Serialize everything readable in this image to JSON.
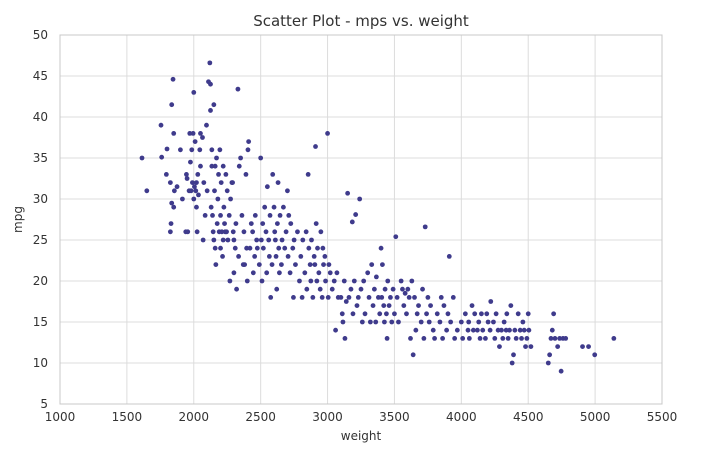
{
  "chart_data": {
    "type": "scatter",
    "title": "Scatter Plot - mps vs. weight",
    "xlabel": "weight",
    "ylabel": "mpg",
    "xlim": [
      1000,
      5500
    ],
    "ylim": [
      5,
      50
    ],
    "x_ticks": [
      1000,
      1500,
      2000,
      2500,
      3000,
      3500,
      4000,
      4500,
      5000,
      5500
    ],
    "y_ticks": [
      5,
      10,
      15,
      20,
      25,
      30,
      35,
      40,
      45,
      50
    ],
    "grid": true,
    "legend": "none",
    "colors": {
      "marker": "#3f3b8c",
      "grid": "#dcdcdc",
      "frame": "#c8c8c8",
      "text": "#333333"
    },
    "points": [
      [
        1613,
        35
      ],
      [
        1649,
        31
      ],
      [
        1755,
        39
      ],
      [
        1760,
        35.1
      ],
      [
        1795,
        33
      ],
      [
        1800,
        36.1
      ],
      [
        1835,
        41.5
      ],
      [
        1845,
        44.6
      ],
      [
        1850,
        38
      ],
      [
        1825,
        32
      ],
      [
        1835,
        29.5
      ],
      [
        1825,
        26
      ],
      [
        1830,
        27
      ],
      [
        1850,
        29
      ],
      [
        1855,
        31
      ],
      [
        1875,
        31.5
      ],
      [
        1900,
        36
      ],
      [
        1915,
        30
      ],
      [
        1940,
        26
      ],
      [
        1945,
        33
      ],
      [
        1950,
        32.5
      ],
      [
        1955,
        26
      ],
      [
        1965,
        31
      ],
      [
        1970,
        38
      ],
      [
        1975,
        34.5
      ],
      [
        1980,
        31
      ],
      [
        1985,
        36
      ],
      [
        1990,
        32
      ],
      [
        1995,
        38
      ],
      [
        2000,
        43
      ],
      [
        2000,
        30
      ],
      [
        2005,
        31.5
      ],
      [
        2010,
        37
      ],
      [
        2015,
        31
      ],
      [
        2020,
        29
      ],
      [
        2020,
        32
      ],
      [
        2025,
        26
      ],
      [
        2030,
        33
      ],
      [
        2035,
        30.5
      ],
      [
        2045,
        36
      ],
      [
        2050,
        38
      ],
      [
        2050,
        34
      ],
      [
        2065,
        37.5
      ],
      [
        2070,
        25
      ],
      [
        2075,
        32
      ],
      [
        2085,
        28
      ],
      [
        2095,
        39
      ],
      [
        2100,
        31
      ],
      [
        2110,
        44.3
      ],
      [
        2120,
        46.6
      ],
      [
        2125,
        40.8
      ],
      [
        2125,
        44
      ],
      [
        2130,
        29
      ],
      [
        2135,
        36
      ],
      [
        2135,
        34
      ],
      [
        2140,
        28
      ],
      [
        2145,
        26
      ],
      [
        2150,
        41.5
      ],
      [
        2150,
        25
      ],
      [
        2155,
        31
      ],
      [
        2160,
        34
      ],
      [
        2160,
        24
      ],
      [
        2165,
        22
      ],
      [
        2170,
        35
      ],
      [
        2175,
        27
      ],
      [
        2180,
        30
      ],
      [
        2185,
        33
      ],
      [
        2190,
        26
      ],
      [
        2195,
        36
      ],
      [
        2200,
        28
      ],
      [
        2200,
        24
      ],
      [
        2205,
        32
      ],
      [
        2210,
        26
      ],
      [
        2215,
        23
      ],
      [
        2220,
        25
      ],
      [
        2220,
        34
      ],
      [
        2225,
        29
      ],
      [
        2230,
        27
      ],
      [
        2235,
        26
      ],
      [
        2240,
        33
      ],
      [
        2245,
        26
      ],
      [
        2250,
        31
      ],
      [
        2255,
        25
      ],
      [
        2265,
        28
      ],
      [
        2270,
        20
      ],
      [
        2275,
        30
      ],
      [
        2285,
        32
      ],
      [
        2290,
        32
      ],
      [
        2295,
        26
      ],
      [
        2300,
        25
      ],
      [
        2300,
        21
      ],
      [
        2310,
        24
      ],
      [
        2315,
        27
      ],
      [
        2320,
        19
      ],
      [
        2330,
        43.4
      ],
      [
        2335,
        23
      ],
      [
        2340,
        34
      ],
      [
        2350,
        35
      ],
      [
        2360,
        28
      ],
      [
        2370,
        22
      ],
      [
        2375,
        26
      ],
      [
        2380,
        22
      ],
      [
        2390,
        33
      ],
      [
        2395,
        24
      ],
      [
        2400,
        20
      ],
      [
        2405,
        36
      ],
      [
        2410,
        37
      ],
      [
        2420,
        24
      ],
      [
        2430,
        27
      ],
      [
        2440,
        26
      ],
      [
        2445,
        21
      ],
      [
        2455,
        23
      ],
      [
        2460,
        28
      ],
      [
        2470,
        25
      ],
      [
        2475,
        24
      ],
      [
        2490,
        22
      ],
      [
        2500,
        35
      ],
      [
        2505,
        25
      ],
      [
        2510,
        20
      ],
      [
        2515,
        27
      ],
      [
        2520,
        24
      ],
      [
        2530,
        29
      ],
      [
        2540,
        26
      ],
      [
        2545,
        21
      ],
      [
        2550,
        31.5
      ],
      [
        2560,
        25
      ],
      [
        2565,
        23
      ],
      [
        2570,
        28
      ],
      [
        2575,
        18
      ],
      [
        2585,
        22
      ],
      [
        2590,
        33
      ],
      [
        2600,
        29
      ],
      [
        2605,
        26
      ],
      [
        2610,
        25
      ],
      [
        2615,
        23
      ],
      [
        2620,
        19
      ],
      [
        2625,
        27
      ],
      [
        2630,
        32
      ],
      [
        2635,
        24
      ],
      [
        2640,
        21
      ],
      [
        2645,
        28
      ],
      [
        2655,
        22
      ],
      [
        2660,
        25
      ],
      [
        2670,
        29
      ],
      [
        2680,
        24
      ],
      [
        2690,
        26
      ],
      [
        2700,
        31
      ],
      [
        2705,
        23
      ],
      [
        2710,
        28
      ],
      [
        2720,
        21
      ],
      [
        2725,
        27
      ],
      [
        2740,
        24
      ],
      [
        2745,
        18
      ],
      [
        2750,
        25
      ],
      [
        2760,
        22
      ],
      [
        2775,
        26
      ],
      [
        2790,
        20
      ],
      [
        2800,
        23
      ],
      [
        2810,
        18
      ],
      [
        2815,
        25
      ],
      [
        2830,
        21
      ],
      [
        2840,
        26
      ],
      [
        2845,
        19
      ],
      [
        2855,
        33
      ],
      [
        2860,
        24
      ],
      [
        2870,
        22
      ],
      [
        2875,
        20
      ],
      [
        2880,
        25
      ],
      [
        2890,
        18
      ],
      [
        2900,
        23
      ],
      [
        2905,
        22
      ],
      [
        2910,
        36.4
      ],
      [
        2915,
        27
      ],
      [
        2920,
        20
      ],
      [
        2925,
        24
      ],
      [
        2935,
        21
      ],
      [
        2945,
        19
      ],
      [
        2950,
        26
      ],
      [
        2960,
        18
      ],
      [
        2965,
        24
      ],
      [
        2970,
        22
      ],
      [
        2980,
        23
      ],
      [
        2985,
        20
      ],
      [
        3000,
        38
      ],
      [
        3005,
        18
      ],
      [
        3010,
        22
      ],
      [
        3020,
        21
      ],
      [
        3035,
        19
      ],
      [
        3050,
        20
      ],
      [
        3060,
        14
      ],
      [
        3070,
        21
      ],
      [
        3080,
        18
      ],
      [
        3100,
        18
      ],
      [
        3110,
        16
      ],
      [
        3115,
        15
      ],
      [
        3125,
        20
      ],
      [
        3130,
        13
      ],
      [
        3140,
        17.5
      ],
      [
        3150,
        30.7
      ],
      [
        3160,
        18
      ],
      [
        3175,
        19
      ],
      [
        3185,
        27.2
      ],
      [
        3190,
        16
      ],
      [
        3200,
        20
      ],
      [
        3210,
        28.1
      ],
      [
        3220,
        17
      ],
      [
        3230,
        18
      ],
      [
        3240,
        30
      ],
      [
        3250,
        19
      ],
      [
        3260,
        15
      ],
      [
        3270,
        20
      ],
      [
        3280,
        16
      ],
      [
        3300,
        21
      ],
      [
        3310,
        18
      ],
      [
        3320,
        15
      ],
      [
        3330,
        22
      ],
      [
        3340,
        17
      ],
      [
        3350,
        19
      ],
      [
        3360,
        15
      ],
      [
        3365,
        20.5
      ],
      [
        3380,
        18
      ],
      [
        3390,
        16
      ],
      [
        3400,
        24
      ],
      [
        3405,
        18
      ],
      [
        3410,
        22
      ],
      [
        3420,
        17
      ],
      [
        3425,
        15
      ],
      [
        3430,
        19
      ],
      [
        3440,
        16
      ],
      [
        3445,
        13
      ],
      [
        3450,
        20
      ],
      [
        3460,
        17
      ],
      [
        3470,
        18
      ],
      [
        3480,
        15
      ],
      [
        3490,
        19
      ],
      [
        3500,
        16
      ],
      [
        3510,
        25.4
      ],
      [
        3520,
        18
      ],
      [
        3530,
        15
      ],
      [
        3550,
        20
      ],
      [
        3560,
        19
      ],
      [
        3570,
        17
      ],
      [
        3580,
        18.5
      ],
      [
        3590,
        16
      ],
      [
        3600,
        19
      ],
      [
        3610,
        18
      ],
      [
        3620,
        13
      ],
      [
        3630,
        20
      ],
      [
        3640,
        11
      ],
      [
        3650,
        18
      ],
      [
        3660,
        14
      ],
      [
        3670,
        16
      ],
      [
        3680,
        17
      ],
      [
        3700,
        15
      ],
      [
        3710,
        19
      ],
      [
        3720,
        13
      ],
      [
        3730,
        26.6
      ],
      [
        3740,
        16
      ],
      [
        3750,
        18
      ],
      [
        3760,
        15
      ],
      [
        3770,
        17
      ],
      [
        3790,
        14
      ],
      [
        3800,
        13
      ],
      [
        3820,
        16
      ],
      [
        3840,
        15
      ],
      [
        3850,
        18
      ],
      [
        3860,
        13
      ],
      [
        3870,
        17
      ],
      [
        3890,
        14
      ],
      [
        3900,
        16
      ],
      [
        3910,
        23
      ],
      [
        3920,
        15
      ],
      [
        3940,
        18
      ],
      [
        3950,
        13
      ],
      [
        3970,
        14
      ],
      [
        4000,
        15
      ],
      [
        4010,
        13
      ],
      [
        4030,
        16
      ],
      [
        4050,
        14
      ],
      [
        4055,
        15
      ],
      [
        4060,
        13
      ],
      [
        4080,
        17
      ],
      [
        4090,
        14
      ],
      [
        4100,
        16
      ],
      [
        4120,
        14
      ],
      [
        4130,
        15
      ],
      [
        4140,
        13
      ],
      [
        4150,
        16
      ],
      [
        4160,
        14
      ],
      [
        4180,
        13
      ],
      [
        4190,
        16
      ],
      [
        4200,
        15
      ],
      [
        4215,
        14
      ],
      [
        4220,
        17.5
      ],
      [
        4240,
        15
      ],
      [
        4250,
        13
      ],
      [
        4260,
        16
      ],
      [
        4275,
        14
      ],
      [
        4285,
        12
      ],
      [
        4300,
        14
      ],
      [
        4310,
        13
      ],
      [
        4320,
        15
      ],
      [
        4335,
        14
      ],
      [
        4340,
        16
      ],
      [
        4350,
        13
      ],
      [
        4360,
        14
      ],
      [
        4370,
        17
      ],
      [
        4380,
        10
      ],
      [
        4390,
        11
      ],
      [
        4400,
        14
      ],
      [
        4410,
        13
      ],
      [
        4425,
        16
      ],
      [
        4440,
        14
      ],
      [
        4450,
        13
      ],
      [
        4460,
        15
      ],
      [
        4470,
        14
      ],
      [
        4480,
        12
      ],
      [
        4490,
        13
      ],
      [
        4500,
        16
      ],
      [
        4505,
        14
      ],
      [
        4520,
        12
      ],
      [
        4650,
        10
      ],
      [
        4660,
        11
      ],
      [
        4670,
        13
      ],
      [
        4680,
        14
      ],
      [
        4690,
        16
      ],
      [
        4700,
        13
      ],
      [
        4720,
        12
      ],
      [
        4735,
        13
      ],
      [
        4746,
        9
      ],
      [
        4760,
        13
      ],
      [
        4780,
        13
      ],
      [
        4906,
        12
      ],
      [
        4951,
        12
      ],
      [
        4997,
        11
      ],
      [
        5140,
        13
      ]
    ]
  }
}
